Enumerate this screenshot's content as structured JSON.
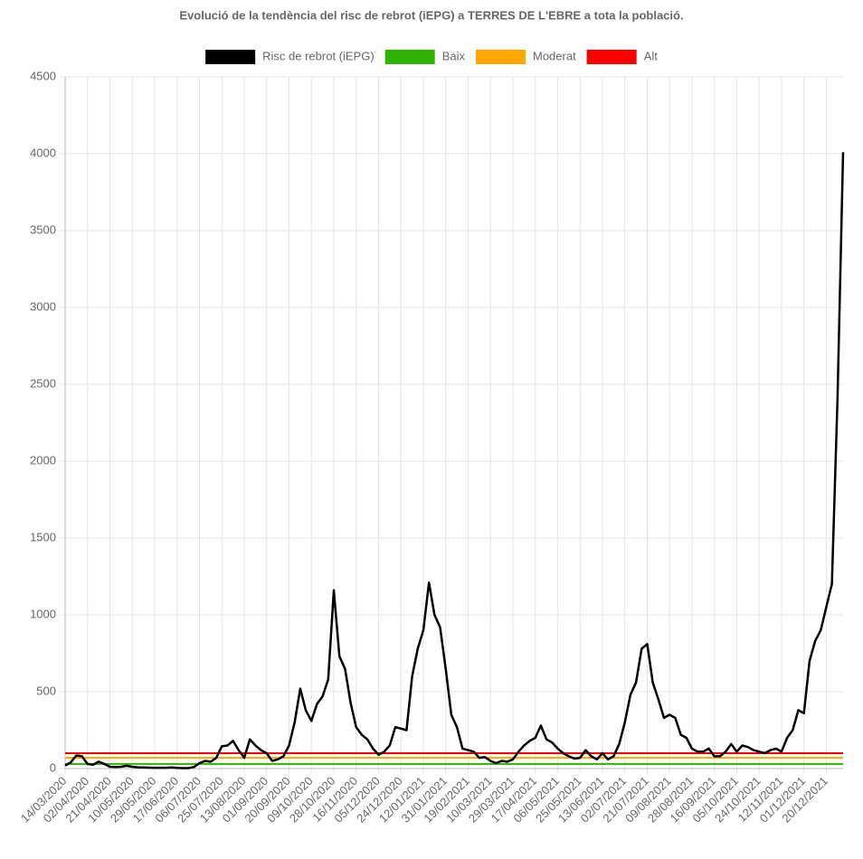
{
  "chart_data": {
    "type": "line",
    "title": "Evolució de la tendència del risc de rebrot (iEPG) a TERRES DE L'EBRE a tota la població.",
    "categories": [
      "14/03/2020",
      null,
      null,
      null,
      "02/04/2020",
      null,
      null,
      null,
      "21/04/2020",
      null,
      null,
      null,
      "10/05/2020",
      null,
      null,
      null,
      "29/05/2020",
      null,
      null,
      null,
      "17/06/2020",
      null,
      null,
      null,
      "06/07/2020",
      null,
      null,
      null,
      "25/07/2020",
      null,
      null,
      null,
      "13/08/2020",
      null,
      null,
      null,
      "01/09/2020",
      null,
      null,
      null,
      "20/09/2020",
      null,
      null,
      null,
      "09/10/2020",
      null,
      null,
      null,
      "28/10/2020",
      null,
      null,
      null,
      "16/11/2020",
      null,
      null,
      null,
      "05/12/2020",
      null,
      null,
      null,
      "24/12/2020",
      null,
      null,
      null,
      "12/01/2021",
      null,
      null,
      null,
      "31/01/2021",
      null,
      null,
      null,
      "19/02/2021",
      null,
      null,
      null,
      "10/03/2021",
      null,
      null,
      null,
      "29/03/2021",
      null,
      null,
      null,
      "17/04/2021",
      null,
      null,
      null,
      "06/05/2021",
      null,
      null,
      null,
      "25/05/2021",
      null,
      null,
      null,
      "13/06/2021",
      null,
      null,
      null,
      "02/07/2021",
      null,
      null,
      null,
      "21/07/2021",
      null,
      null,
      null,
      "09/08/2021",
      null,
      null,
      null,
      "28/08/2021",
      null,
      null,
      null,
      "16/09/2021",
      null,
      null,
      null,
      "05/10/2021",
      null,
      null,
      null,
      "24/10/2021",
      null,
      null,
      null,
      "12/11/2021",
      null,
      null,
      null,
      "01/12/2021",
      null,
      null,
      null,
      "20/12/2021",
      null,
      null,
      null
    ],
    "series": [
      {
        "name": "Risc de rebrot (iEPG)",
        "color": "#000000",
        "values": [
          20,
          40,
          85,
          80,
          30,
          25,
          45,
          30,
          12,
          10,
          12,
          18,
          12,
          8,
          7,
          6,
          5,
          5,
          5,
          7,
          4,
          3,
          3,
          10,
          35,
          50,
          45,
          70,
          145,
          150,
          180,
          120,
          70,
          190,
          150,
          120,
          100,
          50,
          60,
          80,
          150,
          300,
          520,
          380,
          310,
          420,
          470,
          580,
          1160,
          730,
          650,
          430,
          270,
          220,
          190,
          130,
          90,
          110,
          150,
          270,
          260,
          250,
          600,
          780,
          900,
          1210,
          1000,
          920,
          650,
          350,
          270,
          130,
          120,
          110,
          70,
          75,
          50,
          35,
          50,
          45,
          60,
          110,
          150,
          180,
          200,
          280,
          190,
          170,
          130,
          100,
          80,
          65,
          70,
          120,
          80,
          60,
          100,
          60,
          80,
          160,
          300,
          480,
          560,
          780,
          810,
          560,
          450,
          330,
          350,
          330,
          220,
          200,
          130,
          110,
          110,
          130,
          80,
          80,
          110,
          160,
          110,
          150,
          140,
          120,
          110,
          100,
          120,
          130,
          110,
          200,
          250,
          380,
          360,
          700,
          830,
          900,
          1050,
          1200,
          2400,
          4010
        ]
      }
    ],
    "reference_lines": [
      {
        "name": "Baix",
        "color": "#2db300",
        "value": 30
      },
      {
        "name": "Moderat",
        "color": "#ffa800",
        "value": 70
      },
      {
        "name": "Alt",
        "color": "#ff0000",
        "value": 100
      }
    ],
    "ylim": [
      0,
      4500
    ],
    "yticks": [
      0,
      500,
      1000,
      1500,
      2000,
      2500,
      3000,
      3500,
      4000,
      4500
    ],
    "grid": true
  }
}
